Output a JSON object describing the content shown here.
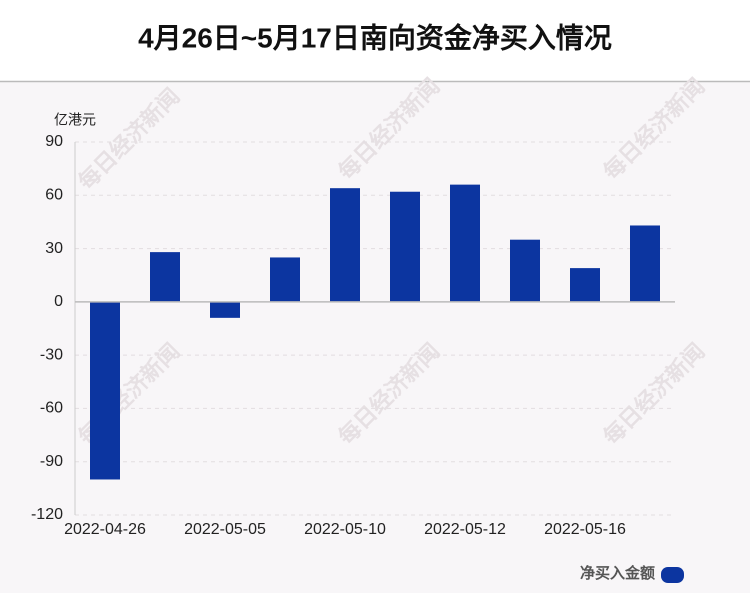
{
  "chart_data": {
    "type": "bar",
    "title": "4月26日~5月17日南向资金净买入情况",
    "y_axis_label": "亿港元",
    "categories": [
      "2022-04-26",
      null,
      "2022-05-05",
      null,
      "2022-05-10",
      null,
      "2022-05-12",
      null,
      "2022-05-16",
      null
    ],
    "series": [
      {
        "name": "净买入金额",
        "color": "#0c35a0",
        "values": [
          -100,
          28,
          -9,
          25,
          64,
          62,
          66,
          35,
          19,
          43
        ]
      }
    ],
    "ylim": [
      -120,
      90
    ],
    "yticks": [
      -120,
      -90,
      -60,
      -30,
      0,
      30,
      60,
      90
    ],
    "grid": true,
    "legend": "bottom-right",
    "watermark": "每日经济新闻"
  }
}
